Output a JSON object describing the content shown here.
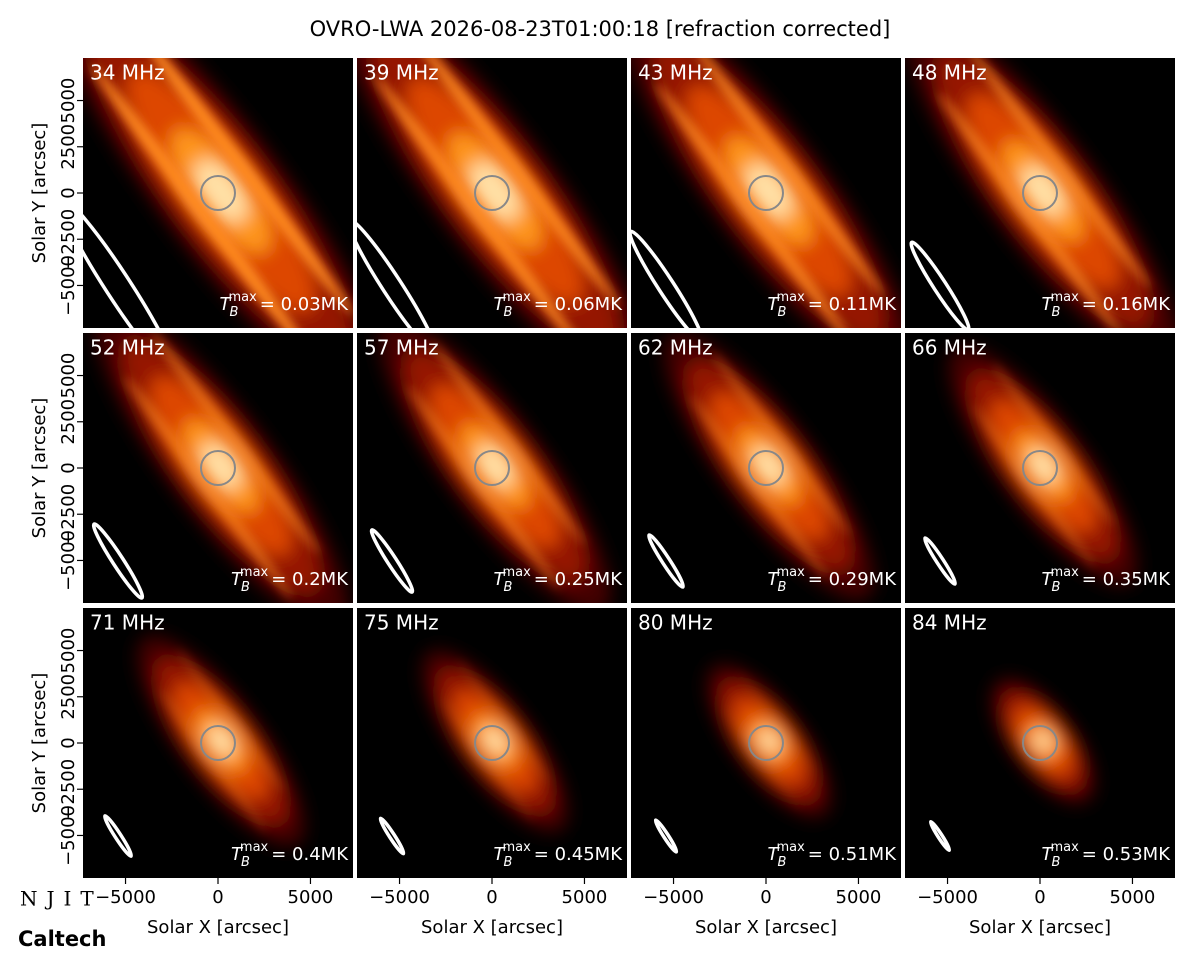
{
  "chart_data": {
    "type": "image-grid",
    "title": "OVRO-LWA 2026-08-23T01:00:18 [refraction corrected]",
    "xlabel": "Solar X [arcsec]",
    "ylabel": "Solar Y [arcsec]",
    "xlim": [
      -7300,
      7300
    ],
    "ylim": [
      -7300,
      7300
    ],
    "xticks": [
      {
        "value": -5000,
        "label": "−5000"
      },
      0,
      5000
    ],
    "yticks": [
      {
        "value": -5000,
        "label": "−5000"
      },
      {
        "value": -2500,
        "label": "−2500"
      },
      0,
      2500,
      5000
    ],
    "tb_symbol": {
      "base": "T",
      "sub": "B",
      "sup": "max"
    },
    "panels": [
      {
        "title": "34 MHz",
        "tb": "= 0.03MK"
      },
      {
        "title": "39 MHz",
        "tb": "= 0.06MK"
      },
      {
        "title": "43 MHz",
        "tb": "= 0.11MK"
      },
      {
        "title": "48 MHz",
        "tb": "= 0.16MK"
      },
      {
        "title": "52 MHz",
        "tb": "= 0.2MK"
      },
      {
        "title": "57 MHz",
        "tb": "= 0.25MK"
      },
      {
        "title": "62 MHz",
        "tb": "= 0.29MK"
      },
      {
        "title": "66 MHz",
        "tb": "= 0.35MK"
      },
      {
        "title": "71 MHz",
        "tb": "= 0.4MK"
      },
      {
        "title": "75 MHz",
        "tb": "= 0.45MK"
      },
      {
        "title": "80 MHz",
        "tb": "= 0.51MK"
      },
      {
        "title": "84 MHz",
        "tb": "= 0.53MK"
      }
    ],
    "logos": [
      "NJIT",
      "Caltech"
    ]
  }
}
